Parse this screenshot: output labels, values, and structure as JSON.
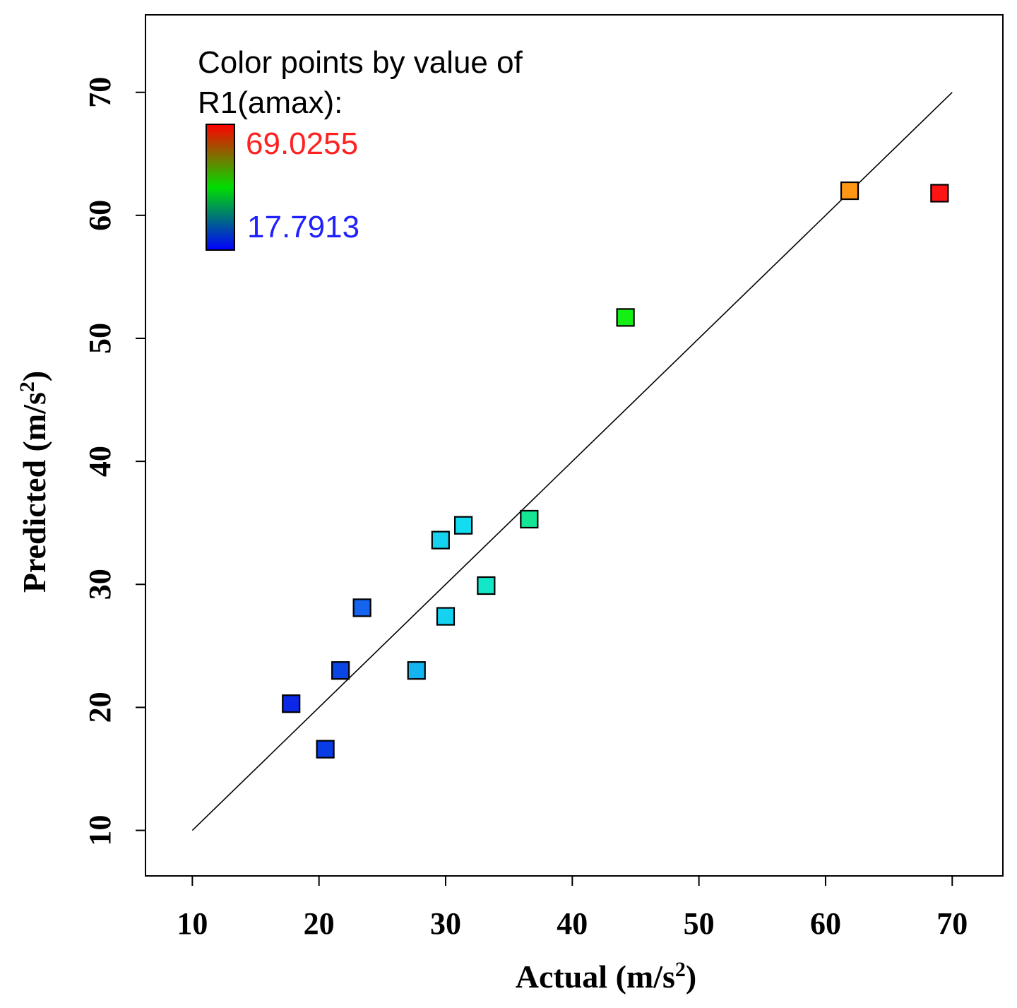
{
  "chart_data": {
    "type": "scatter",
    "title": "",
    "xlabel": "Actual (m/s",
    "ylabel": "Predicted (m/s",
    "units_superscript": "2",
    "units_close": ")",
    "xlim": [
      6.3,
      74.0
    ],
    "ylim": [
      6.3,
      76.3
    ],
    "xticks": [
      10,
      20,
      30,
      40,
      50,
      60,
      70
    ],
    "yticks": [
      10,
      20,
      30,
      40,
      50,
      60,
      70
    ],
    "diagonal_line": {
      "from": [
        10,
        10
      ],
      "to": [
        70,
        70
      ]
    },
    "legend": {
      "title_line1": "Color points by value of",
      "title_line2": "R1(amax):",
      "max_label": "69.0255",
      "min_label": "17.7913",
      "max_color": "#ff2020",
      "min_color": "#2020ff"
    },
    "colors": {
      "gradient_top": "#ff0000",
      "gradient_mid": "#00dd00",
      "gradient_bottom": "#0000ff"
    },
    "points": [
      {
        "x": 17.8,
        "y": 20.3,
        "color": "#0a28e6"
      },
      {
        "x": 20.5,
        "y": 16.6,
        "color": "#0a3ce6"
      },
      {
        "x": 21.7,
        "y": 23.0,
        "color": "#0a46e6"
      },
      {
        "x": 23.4,
        "y": 28.1,
        "color": "#1464f0"
      },
      {
        "x": 27.7,
        "y": 23.0,
        "color": "#14b4f0"
      },
      {
        "x": 29.6,
        "y": 33.6,
        "color": "#14d2f0"
      },
      {
        "x": 30.0,
        "y": 27.4,
        "color": "#14d2f0"
      },
      {
        "x": 31.4,
        "y": 34.8,
        "color": "#14dcf0"
      },
      {
        "x": 33.2,
        "y": 29.9,
        "color": "#14e6c8"
      },
      {
        "x": 36.6,
        "y": 35.3,
        "color": "#14e696"
      },
      {
        "x": 44.2,
        "y": 51.7,
        "color": "#14f014"
      },
      {
        "x": 61.9,
        "y": 62.0,
        "color": "#ff9614"
      },
      {
        "x": 69.0,
        "y": 61.8,
        "color": "#ff1414"
      }
    ]
  }
}
